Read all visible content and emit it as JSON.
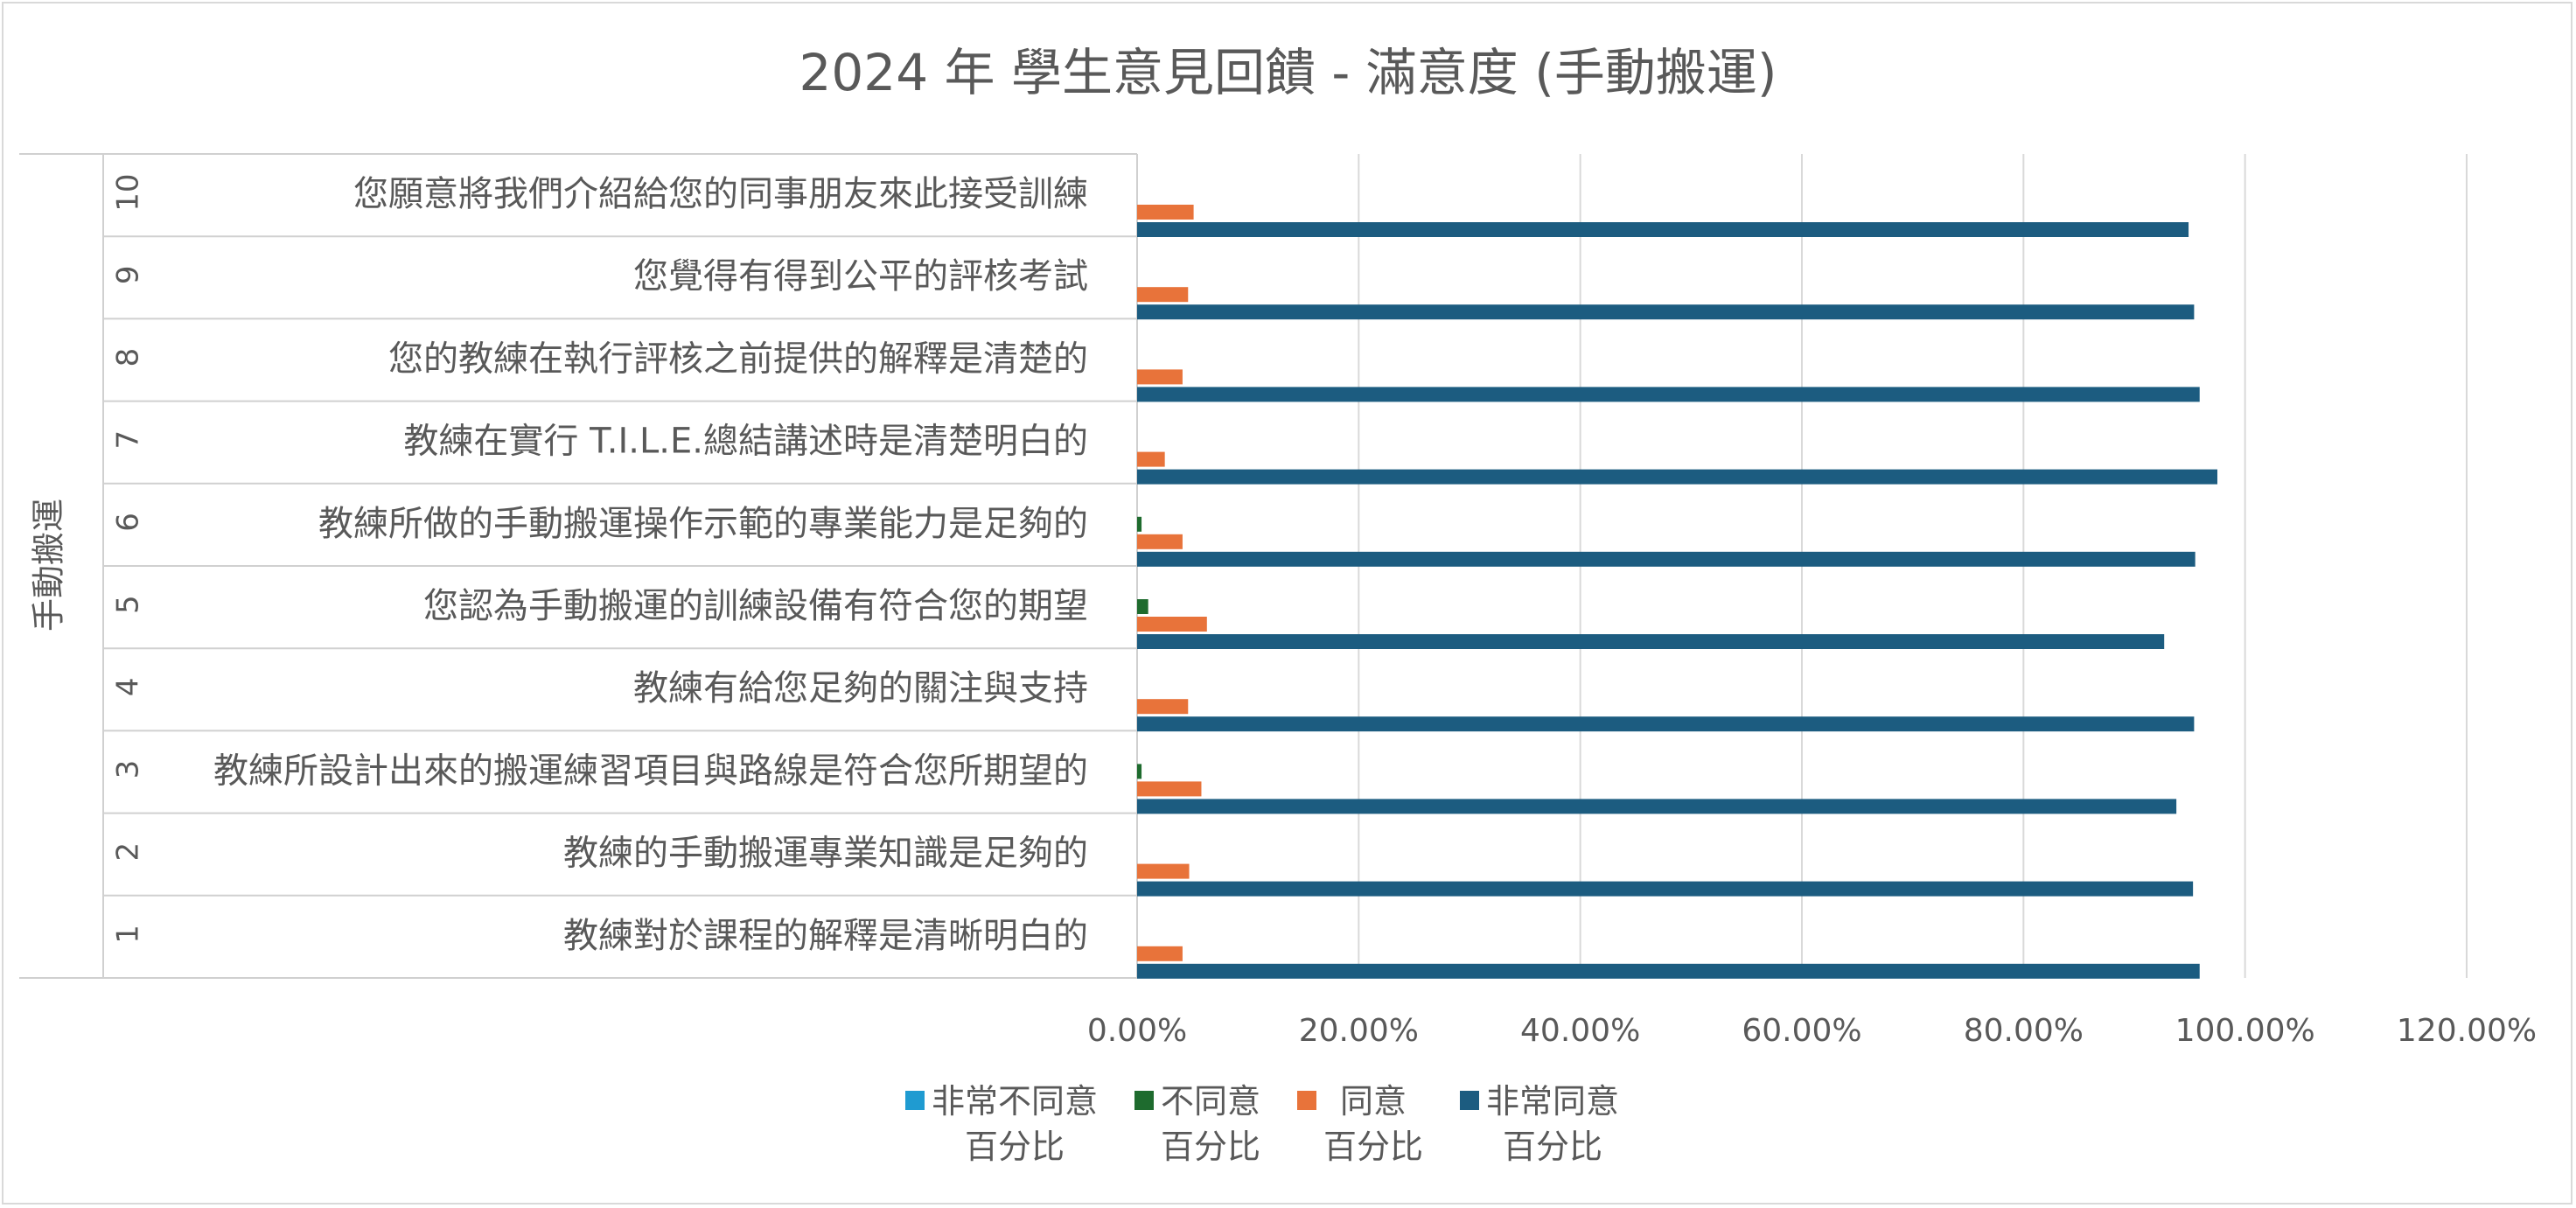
{
  "chart_data": {
    "type": "bar",
    "orientation": "horizontal",
    "title": "2024 年 學生意見回饋 - 滿意度 (手動搬運)",
    "ylabel": "手動搬運",
    "xlim": [
      0,
      1.2
    ],
    "x_ticks": [
      "0.00%",
      "20.00%",
      "40.00%",
      "60.00%",
      "80.00%",
      "100.00%",
      "120.00%"
    ],
    "grid": true,
    "legend_position": "bottom",
    "categories": [
      {
        "num": "1",
        "label": "教練對於課程的解釋是清晰明白的"
      },
      {
        "num": "2",
        "label": "教練的手動搬運專業知識是足夠的"
      },
      {
        "num": "3",
        "label": "教練所設計出來的搬運練習項目與路線是符合您所期望的"
      },
      {
        "num": "4",
        "label": "教練有給您足夠的關注與支持"
      },
      {
        "num": "5",
        "label": "您認為手動搬運的訓練設備有符合您的期望"
      },
      {
        "num": "6",
        "label": "教練所做的手動搬運操作示範的專業能力是足夠的"
      },
      {
        "num": "7",
        "label": "教練在實行 T.I.L.E.總結講述時是清楚明白的"
      },
      {
        "num": "8",
        "label": "您的教練在執行評核之前提供的解釋是清楚的"
      },
      {
        "num": "9",
        "label": "您覺得有得到公平的評核考試"
      },
      {
        "num": "10",
        "label": "您願意將我們介紹給您的同事朋友來此接受訓練"
      }
    ],
    "series": [
      {
        "name": "非常不同意\n百分比",
        "color": "#1f9bd1",
        "values": [
          0,
          0,
          0,
          0,
          0,
          0,
          0,
          0,
          0,
          0
        ]
      },
      {
        "name": "不同意\n百分比",
        "color": "#1e6b2e",
        "values": [
          0,
          0,
          0.004,
          0,
          0.01,
          0.004,
          0,
          0,
          0,
          0
        ]
      },
      {
        "name": "同意\n百分比",
        "color": "#e8733a",
        "values": [
          0.041,
          0.047,
          0.058,
          0.046,
          0.063,
          0.041,
          0.025,
          0.041,
          0.046,
          0.051
        ]
      },
      {
        "name": "非常同意\n百分比",
        "color": "#1c5c80",
        "values": [
          0.959,
          0.953,
          0.938,
          0.954,
          0.927,
          0.955,
          0.975,
          0.959,
          0.954,
          0.949
        ]
      }
    ]
  }
}
